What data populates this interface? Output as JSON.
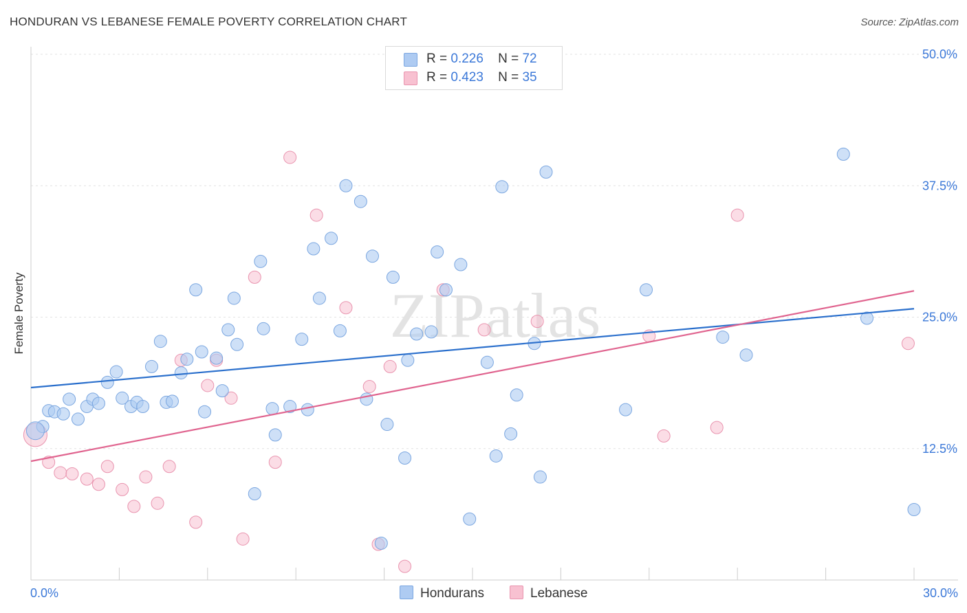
{
  "title": "HONDURAN VS LEBANESE FEMALE POVERTY CORRELATION CHART",
  "source": "Source: ZipAtlas.com",
  "watermark": "ZIPatlas",
  "legend": {
    "rows": [
      {
        "r_label": "R =",
        "r_value": "0.226",
        "n_label": "N =",
        "n_value": "72"
      },
      {
        "r_label": "R =",
        "r_value": "0.423",
        "n_label": "N =",
        "n_value": "35"
      }
    ]
  },
  "bottom_legend": {
    "hondurans": "Hondurans",
    "lebanese": "Lebanese"
  },
  "colors": {
    "blue_fill": "#aecbf2",
    "blue_stroke": "#7aa6e0",
    "blue_line": "#2a6fcc",
    "pink_fill": "#f8c1d1",
    "pink_stroke": "#e993ae",
    "pink_line": "#e0648f",
    "axis_text": "#3b78d8"
  },
  "chart_data": {
    "type": "scatter",
    "title": "HONDURAN VS LEBANESE FEMALE POVERTY CORRELATION CHART",
    "xlabel": "",
    "ylabel": "Female Poverty",
    "xlim": [
      0,
      30
    ],
    "ylim": [
      0,
      50
    ],
    "x_tick_labels": [
      "0.0%",
      "30.0%"
    ],
    "y_tick_labels": [
      "12.5%",
      "25.0%",
      "37.5%",
      "50.0%"
    ],
    "y_ticks": [
      12.5,
      25.0,
      37.5,
      50.0
    ],
    "series": [
      {
        "name": "Hondurans",
        "r": 0.226,
        "n": 72,
        "trend": [
          [
            0,
            18.3
          ],
          [
            30,
            25.8
          ]
        ],
        "points": [
          [
            0.4,
            14.6
          ],
          [
            0.6,
            16.1
          ],
          [
            0.8,
            16.0
          ],
          [
            1.1,
            15.8
          ],
          [
            1.3,
            17.2
          ],
          [
            1.6,
            15.3
          ],
          [
            1.9,
            16.5
          ],
          [
            2.1,
            17.2
          ],
          [
            2.3,
            16.8
          ],
          [
            2.6,
            18.8
          ],
          [
            2.9,
            19.8
          ],
          [
            3.1,
            17.3
          ],
          [
            3.4,
            16.5
          ],
          [
            3.6,
            16.9
          ],
          [
            3.8,
            16.5
          ],
          [
            4.1,
            20.3
          ],
          [
            4.4,
            22.7
          ],
          [
            4.6,
            16.9
          ],
          [
            4.8,
            17.0
          ],
          [
            5.1,
            19.7
          ],
          [
            5.3,
            21.0
          ],
          [
            5.6,
            27.6
          ],
          [
            5.8,
            21.7
          ],
          [
            5.9,
            16.0
          ],
          [
            6.3,
            21.1
          ],
          [
            6.5,
            18.0
          ],
          [
            6.7,
            23.8
          ],
          [
            6.9,
            26.8
          ],
          [
            7.0,
            22.4
          ],
          [
            7.6,
            8.2
          ],
          [
            7.8,
            30.3
          ],
          [
            7.9,
            23.9
          ],
          [
            8.2,
            16.3
          ],
          [
            8.3,
            13.8
          ],
          [
            8.8,
            16.5
          ],
          [
            9.2,
            22.9
          ],
          [
            9.4,
            16.2
          ],
          [
            9.6,
            31.5
          ],
          [
            9.8,
            26.8
          ],
          [
            10.2,
            32.5
          ],
          [
            10.5,
            23.7
          ],
          [
            10.7,
            37.5
          ],
          [
            11.2,
            36.0
          ],
          [
            11.4,
            17.2
          ],
          [
            11.6,
            30.8
          ],
          [
            11.9,
            3.5
          ],
          [
            12.1,
            14.8
          ],
          [
            12.3,
            28.8
          ],
          [
            12.7,
            11.6
          ],
          [
            12.8,
            20.9
          ],
          [
            13.1,
            23.4
          ],
          [
            13.6,
            23.6
          ],
          [
            13.8,
            31.2
          ],
          [
            14.1,
            27.6
          ],
          [
            14.6,
            30.0
          ],
          [
            14.9,
            5.8
          ],
          [
            15.5,
            20.7
          ],
          [
            15.8,
            11.8
          ],
          [
            16.0,
            37.4
          ],
          [
            16.3,
            13.9
          ],
          [
            16.5,
            17.6
          ],
          [
            17.1,
            22.5
          ],
          [
            17.3,
            9.8
          ],
          [
            17.5,
            38.8
          ],
          [
            20.2,
            16.2
          ],
          [
            20.9,
            27.6
          ],
          [
            23.5,
            23.1
          ],
          [
            24.3,
            21.4
          ],
          [
            27.6,
            40.5
          ],
          [
            28.4,
            24.9
          ],
          [
            30.0,
            6.7
          ],
          [
            0.15,
            14.2
          ]
        ]
      },
      {
        "name": "Lebanese",
        "r": 0.423,
        "n": 35,
        "trend": [
          [
            0,
            11.3
          ],
          [
            30,
            27.5
          ]
        ],
        "points": [
          [
            0.15,
            13.8
          ],
          [
            0.6,
            11.2
          ],
          [
            1.0,
            10.2
          ],
          [
            1.4,
            10.1
          ],
          [
            1.9,
            9.6
          ],
          [
            2.3,
            9.1
          ],
          [
            2.6,
            10.8
          ],
          [
            3.1,
            8.6
          ],
          [
            3.5,
            7.0
          ],
          [
            3.9,
            9.8
          ],
          [
            4.3,
            7.3
          ],
          [
            4.7,
            10.8
          ],
          [
            5.1,
            20.9
          ],
          [
            5.6,
            5.5
          ],
          [
            6.0,
            18.5
          ],
          [
            6.3,
            20.9
          ],
          [
            6.8,
            17.3
          ],
          [
            7.2,
            3.9
          ],
          [
            7.6,
            28.8
          ],
          [
            8.3,
            11.2
          ],
          [
            8.8,
            40.2
          ],
          [
            9.7,
            34.7
          ],
          [
            10.7,
            25.9
          ],
          [
            11.5,
            18.4
          ],
          [
            11.8,
            3.4
          ],
          [
            12.2,
            20.3
          ],
          [
            12.7,
            1.3
          ],
          [
            14.0,
            27.6
          ],
          [
            15.4,
            23.8
          ],
          [
            17.2,
            24.6
          ],
          [
            21.0,
            23.2
          ],
          [
            21.5,
            13.7
          ],
          [
            23.3,
            14.5
          ],
          [
            24.0,
            34.7
          ],
          [
            29.8,
            22.5
          ]
        ]
      }
    ]
  }
}
